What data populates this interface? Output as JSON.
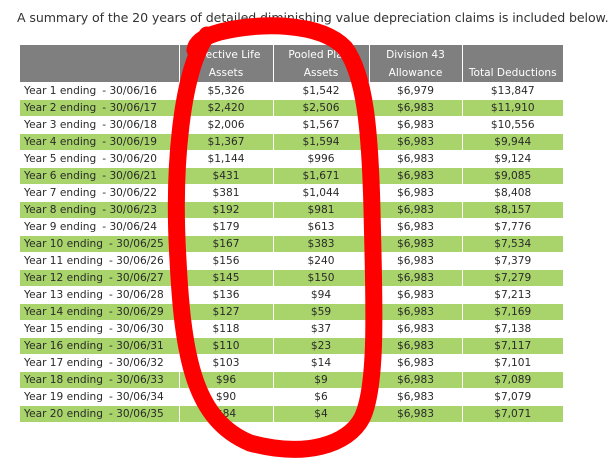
{
  "caption": "A summary of the 20 years of detailed diminishing value depreciation claims is included below.",
  "table": {
    "headers": [
      {
        "line1": "",
        "line2": ""
      },
      {
        "line1": "Effective Life",
        "line2": "Assets"
      },
      {
        "line1": "Pooled Plant",
        "line2": "Assets"
      },
      {
        "line1": "Division 43",
        "line2": "Allowance"
      },
      {
        "line1": "",
        "line2": "Total Deductions"
      }
    ],
    "rows": [
      {
        "period": "Year 1 ending",
        "date": "- 30/06/16",
        "effective": "$5,326",
        "pooled": "$1,542",
        "div43": "$6,979",
        "total": "$13,847"
      },
      {
        "period": "Year 2 ending",
        "date": "- 30/06/17",
        "effective": "$2,420",
        "pooled": "$2,506",
        "div43": "$6,983",
        "total": "$11,910"
      },
      {
        "period": "Year 3 ending",
        "date": "- 30/06/18",
        "effective": "$2,006",
        "pooled": "$1,567",
        "div43": "$6,983",
        "total": "$10,556"
      },
      {
        "period": "Year 4 ending",
        "date": "- 30/06/19",
        "effective": "$1,367",
        "pooled": "$1,594",
        "div43": "$6,983",
        "total": "$9,944"
      },
      {
        "period": "Year 5 ending",
        "date": "- 30/06/20",
        "effective": "$1,144",
        "pooled": "$996",
        "div43": "$6,983",
        "total": "$9,124"
      },
      {
        "period": "Year 6 ending",
        "date": "- 30/06/21",
        "effective": "$431",
        "pooled": "$1,671",
        "div43": "$6,983",
        "total": "$9,085"
      },
      {
        "period": "Year 7 ending",
        "date": "- 30/06/22",
        "effective": "$381",
        "pooled": "$1,044",
        "div43": "$6,983",
        "total": "$8,408"
      },
      {
        "period": "Year 8 ending",
        "date": "- 30/06/23",
        "effective": "$192",
        "pooled": "$981",
        "div43": "$6,983",
        "total": "$8,157"
      },
      {
        "period": "Year 9 ending",
        "date": "- 30/06/24",
        "effective": "$179",
        "pooled": "$613",
        "div43": "$6,983",
        "total": "$7,776"
      },
      {
        "period": "Year 10 ending",
        "date": "- 30/06/25",
        "effective": "$167",
        "pooled": "$383",
        "div43": "$6,983",
        "total": "$7,534"
      },
      {
        "period": "Year 11 ending",
        "date": "- 30/06/26",
        "effective": "$156",
        "pooled": "$240",
        "div43": "$6,983",
        "total": "$7,379"
      },
      {
        "period": "Year 12 ending",
        "date": "- 30/06/27",
        "effective": "$145",
        "pooled": "$150",
        "div43": "$6,983",
        "total": "$7,279"
      },
      {
        "period": "Year 13 ending",
        "date": "- 30/06/28",
        "effective": "$136",
        "pooled": "$94",
        "div43": "$6,983",
        "total": "$7,213"
      },
      {
        "period": "Year 14 ending",
        "date": "- 30/06/29",
        "effective": "$127",
        "pooled": "$59",
        "div43": "$6,983",
        "total": "$7,169"
      },
      {
        "period": "Year 15 ending",
        "date": "- 30/06/30",
        "effective": "$118",
        "pooled": "$37",
        "div43": "$6,983",
        "total": "$7,138"
      },
      {
        "period": "Year 16 ending",
        "date": "- 30/06/31",
        "effective": "$110",
        "pooled": "$23",
        "div43": "$6,983",
        "total": "$7,117"
      },
      {
        "period": "Year 17 ending",
        "date": "- 30/06/32",
        "effective": "$103",
        "pooled": "$14",
        "div43": "$6,983",
        "total": "$7,101"
      },
      {
        "period": "Year 18 ending",
        "date": "- 30/06/33",
        "effective": "$96",
        "pooled": "$9",
        "div43": "$6,983",
        "total": "$7,089"
      },
      {
        "period": "Year 19 ending",
        "date": "- 30/06/34",
        "effective": "$90",
        "pooled": "$6",
        "div43": "$6,983",
        "total": "$7,079"
      },
      {
        "period": "Year 20 ending",
        "date": "- 30/06/35",
        "effective": "$84",
        "pooled": "$4",
        "div43": "$6,983",
        "total": "$7,071"
      }
    ]
  },
  "colors": {
    "header_bg": "#7f7f7f",
    "stripe_green": "#a9d46b",
    "annotation_red": "#ff0000"
  }
}
